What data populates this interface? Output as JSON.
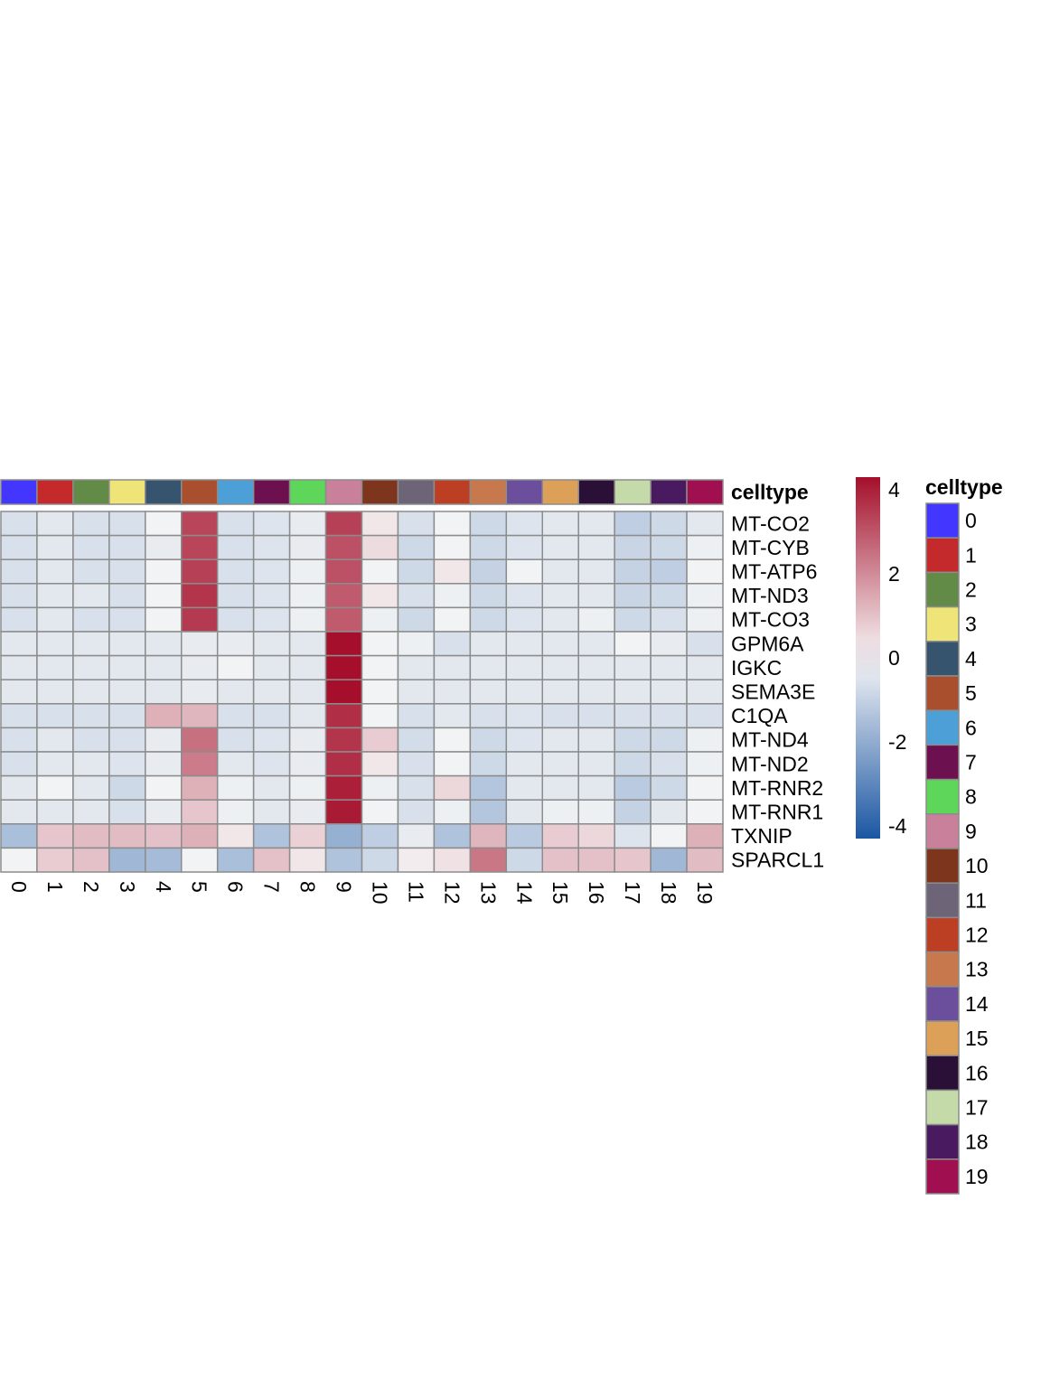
{
  "chart_data": {
    "type": "heatmap",
    "annotation_label": "celltype",
    "columns": [
      "0",
      "1",
      "2",
      "3",
      "4",
      "5",
      "6",
      "7",
      "8",
      "9",
      "10",
      "11",
      "12",
      "13",
      "14",
      "15",
      "16",
      "17",
      "18",
      "19"
    ],
    "rows": [
      "MT-CO2",
      "MT-CYB",
      "MT-ATP6",
      "MT-ND3",
      "MT-CO3",
      "GPM6A",
      "IGKC",
      "SEMA3E",
      "C1QA",
      "MT-ND4",
      "MT-ND2",
      "MT-RNR2",
      "MT-RNR1",
      "TXNIP",
      "SPARCL1"
    ],
    "values": [
      [
        -0.6,
        -0.4,
        -0.6,
        -0.6,
        -0.1,
        3.3,
        -0.6,
        -0.5,
        -0.3,
        3.4,
        0.3,
        -0.6,
        -0.1,
        -0.8,
        -0.5,
        -0.4,
        -0.4,
        -1.1,
        -0.8,
        -0.4
      ],
      [
        -0.6,
        -0.4,
        -0.6,
        -0.6,
        -0.3,
        3.3,
        -0.6,
        -0.5,
        -0.3,
        3.1,
        0.5,
        -0.8,
        -0.1,
        -0.8,
        -0.5,
        -0.4,
        -0.4,
        -0.9,
        -0.8,
        -0.2
      ],
      [
        -0.6,
        -0.4,
        -0.6,
        -0.6,
        -0.1,
        3.4,
        -0.6,
        -0.5,
        -0.2,
        3.1,
        -0.1,
        -0.8,
        0.3,
        -1.0,
        -0.1,
        -0.4,
        -0.4,
        -1.0,
        -1.1,
        -0.1
      ],
      [
        -0.6,
        -0.4,
        -0.4,
        -0.6,
        -0.1,
        3.6,
        -0.6,
        -0.5,
        -0.2,
        2.9,
        0.3,
        -0.6,
        -0.2,
        -0.8,
        -0.5,
        -0.4,
        -0.4,
        -0.9,
        -0.8,
        -0.2
      ],
      [
        -0.6,
        -0.4,
        -0.6,
        -0.6,
        -0.1,
        3.5,
        -0.6,
        -0.5,
        -0.2,
        2.9,
        -0.2,
        -0.8,
        -0.1,
        -0.8,
        -0.5,
        -0.4,
        -0.2,
        -0.8,
        -0.6,
        -0.2
      ],
      [
        -0.4,
        -0.4,
        -0.4,
        -0.4,
        -0.4,
        -0.3,
        -0.3,
        -0.4,
        -0.4,
        4.3,
        -0.1,
        -0.2,
        -0.6,
        -0.4,
        -0.4,
        -0.4,
        -0.4,
        -0.1,
        -0.3,
        -0.6
      ],
      [
        -0.4,
        -0.4,
        -0.4,
        -0.4,
        -0.4,
        -0.3,
        -0.1,
        -0.4,
        -0.4,
        4.3,
        -0.1,
        -0.4,
        -0.4,
        -0.4,
        -0.4,
        -0.4,
        -0.4,
        -0.4,
        -0.4,
        -0.4
      ],
      [
        -0.4,
        -0.4,
        -0.4,
        -0.4,
        -0.4,
        -0.3,
        -0.4,
        -0.4,
        -0.4,
        4.3,
        -0.1,
        -0.4,
        -0.4,
        -0.4,
        -0.4,
        -0.4,
        -0.4,
        -0.4,
        -0.4,
        -0.4
      ],
      [
        -0.6,
        -0.6,
        -0.6,
        -0.6,
        1.3,
        1.2,
        -0.6,
        -0.6,
        -0.4,
        3.7,
        -0.1,
        -0.6,
        -0.4,
        -0.6,
        -0.5,
        -0.6,
        -0.6,
        -0.6,
        -0.6,
        -0.6
      ],
      [
        -0.6,
        -0.4,
        -0.6,
        -0.6,
        -0.3,
        2.5,
        -0.6,
        -0.5,
        -0.3,
        3.6,
        0.8,
        -0.7,
        -0.1,
        -0.8,
        -0.5,
        -0.4,
        -0.4,
        -0.8,
        -0.8,
        -0.2
      ],
      [
        -0.6,
        -0.4,
        -0.4,
        -0.5,
        -0.3,
        2.3,
        -0.4,
        -0.5,
        -0.3,
        3.7,
        0.3,
        -0.6,
        -0.1,
        -0.8,
        -0.4,
        -0.4,
        -0.4,
        -0.8,
        -0.6,
        -0.2
      ],
      [
        -0.4,
        -0.1,
        -0.4,
        -0.8,
        -0.1,
        1.3,
        -0.2,
        -0.4,
        -0.2,
        4.0,
        -0.2,
        -0.6,
        0.6,
        -1.3,
        -0.4,
        -0.4,
        -0.4,
        -1.2,
        -0.8,
        -0.1
      ],
      [
        -0.4,
        -0.4,
        -0.4,
        -0.6,
        -0.3,
        0.9,
        -0.2,
        -0.4,
        -0.3,
        4.1,
        -0.1,
        -0.6,
        -0.2,
        -1.3,
        -0.4,
        -0.2,
        -0.2,
        -1.0,
        -0.4,
        -0.1
      ],
      [
        -1.5,
        0.9,
        1.1,
        1.1,
        1.0,
        1.3,
        0.3,
        -1.4,
        0.7,
        -1.9,
        -1.1,
        -0.3,
        -1.4,
        1.2,
        -1.2,
        0.8,
        0.6,
        -0.5,
        -0.1,
        1.3
      ],
      [
        -0.1,
        0.8,
        1.0,
        -1.7,
        -1.6,
        -0.1,
        -1.5,
        1.0,
        0.3,
        -1.4,
        -0.8,
        0.2,
        0.4,
        2.4,
        -0.8,
        1.0,
        1.0,
        0.9,
        -1.7,
        1.1
      ]
    ],
    "celltype_colors": [
      "#4337FF",
      "#C42A2C",
      "#628B47",
      "#EFE477",
      "#37546E",
      "#A94F2E",
      "#4C9FD7",
      "#6C1050",
      "#5ED65A",
      "#C9819B",
      "#7D361D",
      "#6E6477",
      "#BC3F24",
      "#C8784D",
      "#6B4F9C",
      "#DDA058",
      "#2A1036",
      "#C4DAA9",
      "#4A1A60",
      "#A01050"
    ],
    "color_scale": {
      "min": -4.3,
      "max": 4.3,
      "ticks": [
        4,
        2,
        0,
        -2,
        -4
      ],
      "low": "#1B56A3",
      "mid": "#F7F7F7",
      "high": "#A50F2B"
    },
    "legend_title": "celltype"
  }
}
